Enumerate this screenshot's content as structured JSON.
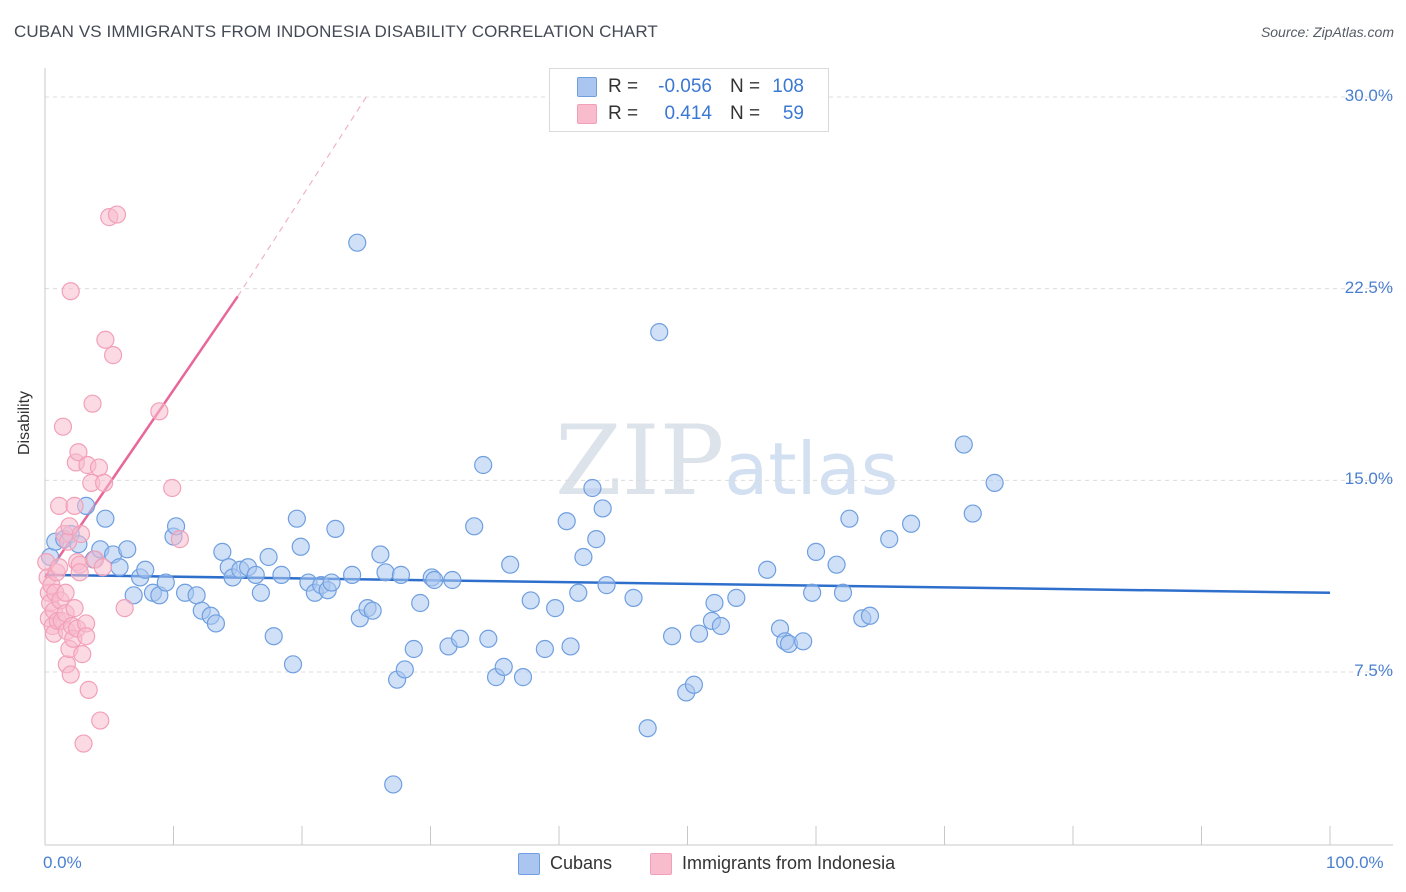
{
  "header": {
    "title": "CUBAN VS IMMIGRANTS FROM INDONESIA DISABILITY CORRELATION CHART",
    "source": "Source: ZipAtlas.com"
  },
  "watermark": {
    "zip": "ZIP",
    "atlas": "atlas"
  },
  "legend": {
    "r_label": "R =",
    "n_label": "N =",
    "series": [
      {
        "name": "Cubans",
        "r": "-0.056",
        "n": "108",
        "color": "#aac6f0"
      },
      {
        "name": "Immigrants from Indonesia",
        "r": "0.414",
        "n": "59",
        "color": "#f8bccd"
      }
    ]
  },
  "chart_data": {
    "type": "scatter",
    "title": "CUBAN VS IMMIGRANTS FROM INDONESIA DISABILITY CORRELATION CHART",
    "xlabel": "",
    "ylabel": "Disability",
    "xlim": [
      0,
      100
    ],
    "ylim": [
      0,
      31
    ],
    "x_tick_labels": [
      "0.0%",
      "100.0%"
    ],
    "y_ticks": [
      7.5,
      15.0,
      22.5,
      30.0
    ],
    "y_tick_labels": [
      "7.5%",
      "15.0%",
      "22.5%",
      "30.0%"
    ],
    "grid": true,
    "series": [
      {
        "name": "Cubans",
        "color": "#6f9fe0",
        "fill": "#aac6f0",
        "line_color": "#2f6fcc",
        "trend": {
          "x": [
            0,
            100
          ],
          "y": [
            11.3,
            10.6
          ]
        },
        "points": [
          [
            0.4,
            12.0
          ],
          [
            0.8,
            12.6
          ],
          [
            1.5,
            12.7
          ],
          [
            2.0,
            12.9
          ],
          [
            2.6,
            12.5
          ],
          [
            3.2,
            14.0
          ],
          [
            3.8,
            11.9
          ],
          [
            4.3,
            12.3
          ],
          [
            4.7,
            13.5
          ],
          [
            5.3,
            12.1
          ],
          [
            5.8,
            11.6
          ],
          [
            6.4,
            12.3
          ],
          [
            6.9,
            10.5
          ],
          [
            7.4,
            11.2
          ],
          [
            7.8,
            11.5
          ],
          [
            8.4,
            10.6
          ],
          [
            8.9,
            10.5
          ],
          [
            9.4,
            11.0
          ],
          [
            10.0,
            12.8
          ],
          [
            10.2,
            13.2
          ],
          [
            10.9,
            10.6
          ],
          [
            11.8,
            10.5
          ],
          [
            12.2,
            9.9
          ],
          [
            12.9,
            9.7
          ],
          [
            13.3,
            9.4
          ],
          [
            13.8,
            12.2
          ],
          [
            14.3,
            11.6
          ],
          [
            14.6,
            11.2
          ],
          [
            15.2,
            11.5
          ],
          [
            15.8,
            11.6
          ],
          [
            16.4,
            11.3
          ],
          [
            16.8,
            10.6
          ],
          [
            17.4,
            12.0
          ],
          [
            17.8,
            8.9
          ],
          [
            18.4,
            11.3
          ],
          [
            19.3,
            7.8
          ],
          [
            19.6,
            13.5
          ],
          [
            19.9,
            12.4
          ],
          [
            20.5,
            11.0
          ],
          [
            21.0,
            10.6
          ],
          [
            21.5,
            10.9
          ],
          [
            22.0,
            10.7
          ],
          [
            22.3,
            11.0
          ],
          [
            22.6,
            13.1
          ],
          [
            23.9,
            11.3
          ],
          [
            24.3,
            24.3
          ],
          [
            24.5,
            9.6
          ],
          [
            25.1,
            10.0
          ],
          [
            25.5,
            9.9
          ],
          [
            26.1,
            12.1
          ],
          [
            26.5,
            11.4
          ],
          [
            27.1,
            3.1
          ],
          [
            27.4,
            7.2
          ],
          [
            27.7,
            11.3
          ],
          [
            28.0,
            7.6
          ],
          [
            28.7,
            8.4
          ],
          [
            29.2,
            10.2
          ],
          [
            30.1,
            11.2
          ],
          [
            30.3,
            11.1
          ],
          [
            31.4,
            8.5
          ],
          [
            31.7,
            11.1
          ],
          [
            32.3,
            8.8
          ],
          [
            33.4,
            13.2
          ],
          [
            34.1,
            15.6
          ],
          [
            34.5,
            8.8
          ],
          [
            35.1,
            7.3
          ],
          [
            35.7,
            7.7
          ],
          [
            36.2,
            11.7
          ],
          [
            37.2,
            7.3
          ],
          [
            37.8,
            10.3
          ],
          [
            38.9,
            8.4
          ],
          [
            39.7,
            10.0
          ],
          [
            40.6,
            13.4
          ],
          [
            40.9,
            8.5
          ],
          [
            41.5,
            10.6
          ],
          [
            41.9,
            12.0
          ],
          [
            42.6,
            14.7
          ],
          [
            42.9,
            12.7
          ],
          [
            43.4,
            13.9
          ],
          [
            43.7,
            10.9
          ],
          [
            45.8,
            10.4
          ],
          [
            46.9,
            5.3
          ],
          [
            47.8,
            20.8
          ],
          [
            48.8,
            8.9
          ],
          [
            49.9,
            6.7
          ],
          [
            50.5,
            7.0
          ],
          [
            50.9,
            9.0
          ],
          [
            51.9,
            9.5
          ],
          [
            52.1,
            10.2
          ],
          [
            52.6,
            9.3
          ],
          [
            53.8,
            10.4
          ],
          [
            56.2,
            11.5
          ],
          [
            57.2,
            9.2
          ],
          [
            57.6,
            8.7
          ],
          [
            57.9,
            8.6
          ],
          [
            59.0,
            8.7
          ],
          [
            59.7,
            10.6
          ],
          [
            60.0,
            12.2
          ],
          [
            61.6,
            11.7
          ],
          [
            62.1,
            10.6
          ],
          [
            62.6,
            13.5
          ],
          [
            63.6,
            9.6
          ],
          [
            64.2,
            9.7
          ],
          [
            65.7,
            12.7
          ],
          [
            67.4,
            13.3
          ],
          [
            71.5,
            16.4
          ],
          [
            72.2,
            13.7
          ],
          [
            73.9,
            14.9
          ]
        ]
      },
      {
        "name": "Immigrants from Indonesia",
        "color": "#f2a0b8",
        "fill": "#f8bccd",
        "line_color": "#e8669a",
        "trend": {
          "x": [
            0,
            15
          ],
          "y": [
            11.2,
            22.2
          ]
        },
        "trend_extension": {
          "x": [
            15,
            25
          ],
          "y": [
            22.2,
            30.0
          ]
        },
        "points": [
          [
            0.1,
            11.8
          ],
          [
            0.2,
            11.2
          ],
          [
            0.3,
            10.6
          ],
          [
            0.3,
            9.6
          ],
          [
            0.4,
            10.2
          ],
          [
            0.5,
            10.9
          ],
          [
            0.6,
            9.3
          ],
          [
            0.7,
            9.9
          ],
          [
            0.7,
            9.0
          ],
          [
            0.8,
            10.6
          ],
          [
            0.9,
            11.4
          ],
          [
            1.0,
            9.5
          ],
          [
            1.1,
            11.6
          ],
          [
            1.1,
            14.0
          ],
          [
            1.2,
            10.3
          ],
          [
            1.3,
            9.5
          ],
          [
            1.4,
            17.1
          ],
          [
            1.5,
            12.9
          ],
          [
            1.6,
            10.6
          ],
          [
            1.6,
            9.8
          ],
          [
            1.7,
            9.1
          ],
          [
            1.7,
            7.8
          ],
          [
            1.8,
            12.6
          ],
          [
            1.9,
            13.2
          ],
          [
            1.9,
            8.4
          ],
          [
            2.0,
            7.4
          ],
          [
            2.0,
            22.4
          ],
          [
            2.1,
            9.3
          ],
          [
            2.2,
            8.8
          ],
          [
            2.3,
            14.0
          ],
          [
            2.3,
            10.0
          ],
          [
            2.4,
            15.7
          ],
          [
            2.5,
            11.8
          ],
          [
            2.5,
            9.2
          ],
          [
            2.6,
            16.1
          ],
          [
            2.7,
            11.7
          ],
          [
            2.7,
            11.4
          ],
          [
            2.8,
            12.9
          ],
          [
            2.9,
            8.2
          ],
          [
            3.0,
            4.7
          ],
          [
            3.2,
            9.4
          ],
          [
            3.2,
            8.9
          ],
          [
            3.3,
            15.6
          ],
          [
            3.4,
            6.8
          ],
          [
            3.6,
            14.9
          ],
          [
            3.7,
            18.0
          ],
          [
            3.9,
            11.9
          ],
          [
            4.2,
            15.5
          ],
          [
            4.3,
            5.6
          ],
          [
            4.5,
            11.6
          ],
          [
            4.6,
            14.9
          ],
          [
            4.7,
            20.5
          ],
          [
            5.0,
            25.3
          ],
          [
            5.3,
            19.9
          ],
          [
            5.6,
            25.4
          ],
          [
            6.2,
            10.0
          ],
          [
            8.9,
            17.7
          ],
          [
            9.9,
            14.7
          ],
          [
            10.5,
            12.7
          ]
        ]
      }
    ]
  }
}
